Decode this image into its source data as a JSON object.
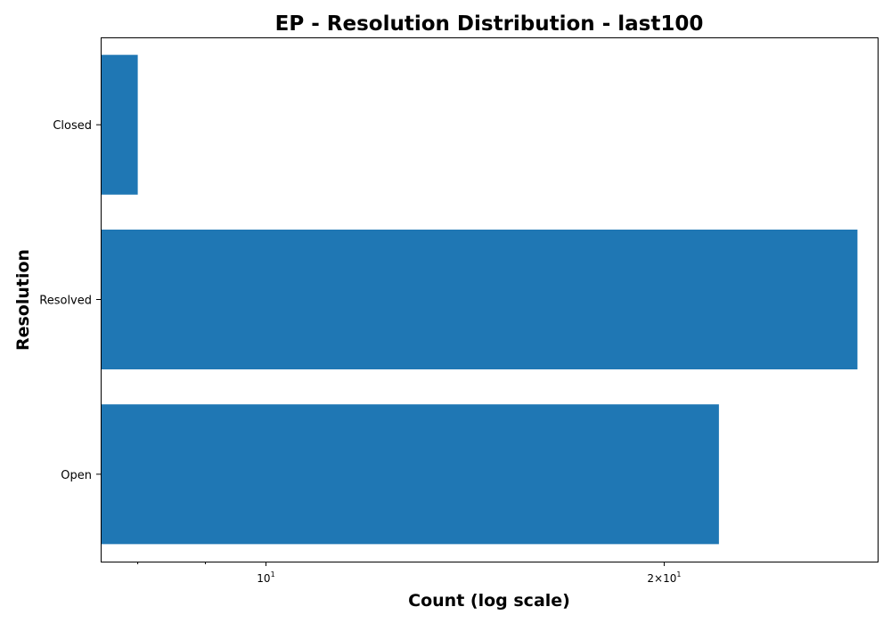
{
  "chart_data": {
    "type": "bar",
    "orientation": "horizontal",
    "title": "EP - Resolution Distribution - last100",
    "xlabel": "Count (log scale)",
    "ylabel": "Resolution",
    "x_scale": "log",
    "xlim": [
      7.5,
      29
    ],
    "categories": [
      "Closed",
      "Resolved",
      "Open"
    ],
    "values": [
      8,
      28,
      22
    ],
    "bar_color": "#1f77b4",
    "x_major_ticks": [
      {
        "value": 10,
        "base": "10",
        "exp": "1"
      },
      {
        "value": 20,
        "base": "2×10",
        "exp": "1"
      }
    ],
    "x_minor_ticks": [
      8,
      9
    ],
    "grid": false,
    "legend": "none"
  }
}
